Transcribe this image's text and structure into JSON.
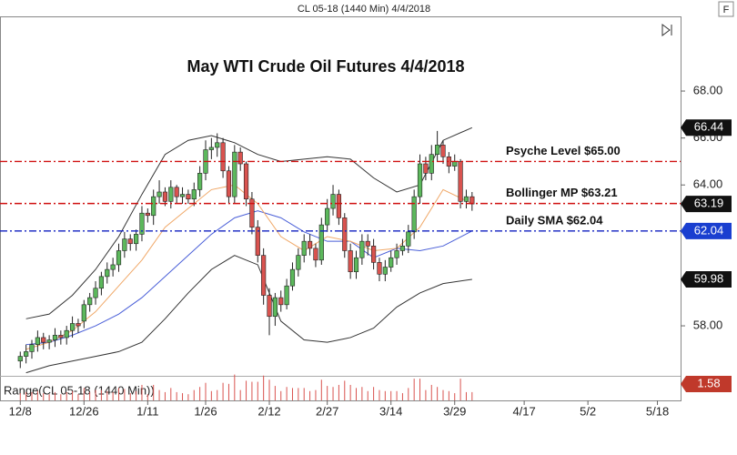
{
  "header": "CL 05-18 (1440 Min)  4/4/2018",
  "f_button": "F",
  "chart_data": {
    "type": "candlestick",
    "title": "May WTI Crude Oil Futures 4/4/2018",
    "ylim": [
      55.87,
      71.18
    ],
    "yticks": [
      {
        "value": 58,
        "label": "58.00"
      },
      {
        "value": 60,
        "label": "60.00"
      },
      {
        "value": 62,
        "label": "62.00"
      },
      {
        "value": 64,
        "label": "64.00"
      },
      {
        "value": 66,
        "label": "66.00"
      },
      {
        "value": 68,
        "label": "68.00"
      }
    ],
    "xlim": [
      -3.5,
      114
    ],
    "xticks": [
      {
        "value": 0,
        "label": "12/8"
      },
      {
        "value": 11,
        "label": "12/26"
      },
      {
        "value": 22,
        "label": "1/11"
      },
      {
        "value": 32,
        "label": "1/26"
      },
      {
        "value": 43,
        "label": "2/12"
      },
      {
        "value": 53,
        "label": "2/27"
      },
      {
        "value": 64,
        "label": "3/14"
      },
      {
        "value": 75,
        "label": "3/29"
      },
      {
        "value": 87,
        "label": "4/17"
      },
      {
        "value": 98,
        "label": "5/2"
      },
      {
        "value": 110,
        "label": "5/18"
      }
    ],
    "up_color": "#5cb85c",
    "down_color": "#d9534f",
    "candles": {
      "open": [
        56.5,
        56.7,
        56.9,
        57.2,
        57.5,
        57.3,
        57.4,
        57.6,
        57.5,
        57.8,
        58.1,
        58.2,
        58.9,
        59.2,
        59.6,
        60.1,
        60.4,
        60.6,
        61.2,
        61.7,
        61.5,
        61.9,
        62.8,
        62.7,
        63.5,
        63.7,
        63.3,
        63.9,
        63.5,
        63.6,
        63.4,
        63.8,
        64.5,
        65.5,
        65.6,
        65.8,
        64.6,
        63.5,
        65.4,
        64.9,
        63.4,
        62.2,
        61.0,
        59.3,
        58.4,
        59.2,
        58.9,
        59.7,
        60.4,
        61.0,
        61.6,
        61.3,
        60.8,
        62.3,
        63.0,
        63.6,
        62.6,
        61.2,
        60.3,
        60.9,
        61.6,
        61.4,
        60.7,
        60.2,
        60.5,
        60.9,
        61.2,
        61.4,
        62.0,
        63.5,
        64.9,
        64.5,
        65.3,
        65.7,
        65.2,
        64.8,
        65.0,
        63.3,
        63.5
      ],
      "high": [
        56.9,
        57.2,
        57.4,
        57.8,
        57.7,
        57.6,
        57.9,
        57.8,
        58.0,
        58.4,
        58.3,
        59.1,
        59.4,
        59.9,
        60.3,
        60.7,
        60.9,
        61.5,
        62.0,
        61.9,
        62.1,
        63.1,
        63.0,
        63.8,
        64.2,
        63.9,
        64.2,
        64.0,
        63.9,
        63.8,
        64.1,
        64.8,
        65.9,
        66.0,
        66.2,
        66.0,
        64.8,
        65.7,
        65.6,
        65.0,
        63.7,
        62.5,
        61.3,
        59.6,
        59.4,
        59.5,
        60.0,
        60.7,
        61.3,
        61.9,
        61.9,
        61.5,
        62.6,
        63.4,
        64.0,
        63.8,
        62.8,
        61.5,
        61.2,
        61.9,
        61.9,
        61.7,
        60.9,
        60.8,
        61.2,
        61.5,
        61.7,
        62.3,
        63.8,
        65.3,
        65.2,
        65.7,
        66.3,
        65.9,
        65.4,
        65.3,
        65.1,
        63.8,
        63.7
      ],
      "low": [
        56.2,
        56.4,
        56.6,
        56.9,
        57.0,
        57.0,
        57.1,
        57.2,
        57.2,
        57.5,
        57.7,
        57.9,
        58.6,
        58.9,
        59.3,
        59.8,
        60.1,
        60.3,
        60.9,
        61.2,
        61.2,
        61.6,
        62.4,
        62.3,
        63.2,
        63.1,
        63.0,
        63.2,
        63.2,
        63.2,
        63.1,
        63.5,
        64.2,
        65.1,
        65.2,
        64.3,
        63.2,
        63.2,
        64.6,
        63.1,
        61.9,
        60.7,
        58.9,
        57.6,
        58.0,
        58.6,
        58.7,
        59.5,
        60.1,
        60.7,
        61.0,
        60.5,
        60.6,
        62.0,
        62.7,
        62.3,
        60.9,
        60.0,
        60.0,
        60.6,
        61.0,
        60.4,
        59.9,
        59.9,
        60.3,
        60.6,
        61.0,
        61.1,
        61.7,
        63.2,
        64.2,
        64.2,
        65.0,
        64.9,
        64.5,
        64.6,
        63.0,
        63.0,
        62.9
      ],
      "close": [
        56.7,
        56.9,
        57.2,
        57.5,
        57.3,
        57.4,
        57.6,
        57.5,
        57.8,
        58.1,
        58.0,
        58.9,
        59.2,
        59.6,
        60.1,
        60.4,
        60.6,
        61.2,
        61.7,
        61.5,
        61.9,
        62.8,
        62.7,
        63.5,
        63.7,
        63.3,
        63.9,
        63.5,
        63.6,
        63.4,
        63.8,
        64.5,
        65.5,
        65.6,
        65.8,
        64.6,
        63.5,
        65.4,
        64.9,
        63.4,
        62.2,
        61.0,
        59.3,
        58.4,
        59.2,
        58.9,
        59.7,
        60.4,
        61.0,
        61.6,
        61.3,
        60.8,
        62.3,
        63.0,
        63.6,
        62.6,
        61.2,
        60.3,
        60.9,
        61.6,
        61.4,
        60.7,
        60.2,
        60.5,
        60.9,
        61.2,
        61.4,
        62.0,
        63.5,
        64.9,
        64.5,
        65.3,
        65.7,
        65.2,
        64.8,
        65.0,
        63.3,
        63.5,
        63.19
      ]
    },
    "overlays": [
      {
        "color": "#333333",
        "x": [
          1,
          5,
          9,
          13,
          17,
          21,
          25,
          29,
          33,
          37,
          41,
          45,
          49,
          53,
          57,
          61,
          65,
          69,
          73,
          78
        ],
        "values": [
          58.3,
          58.5,
          59.3,
          60.4,
          61.8,
          63.6,
          65.3,
          65.9,
          66.1,
          65.8,
          65.3,
          65.0,
          65.1,
          65.2,
          65.1,
          64.3,
          63.7,
          64.0,
          65.9,
          66.44
        ]
      },
      {
        "color": "#333333",
        "x": [
          1,
          5,
          9,
          13,
          17,
          21,
          25,
          29,
          33,
          37,
          41,
          45,
          49,
          53,
          57,
          61,
          65,
          69,
          73,
          78
        ],
        "values": [
          56.0,
          56.3,
          56.5,
          56.7,
          56.9,
          57.3,
          58.3,
          59.4,
          60.4,
          61.0,
          60.6,
          58.2,
          57.4,
          57.3,
          57.5,
          57.9,
          58.8,
          59.4,
          59.8,
          59.98
        ]
      },
      {
        "color": "#4a5fd8",
        "x": [
          1,
          5,
          9,
          13,
          17,
          21,
          25,
          29,
          33,
          37,
          41,
          45,
          49,
          53,
          57,
          61,
          65,
          69,
          73,
          78
        ],
        "values": [
          57.2,
          57.3,
          57.6,
          58.0,
          58.5,
          59.2,
          60.1,
          61.0,
          61.9,
          62.6,
          62.9,
          62.6,
          62.0,
          61.6,
          61.6,
          60.9,
          61.3,
          61.2,
          61.4,
          62.04
        ]
      },
      {
        "color": "#f0a868",
        "x": [
          1,
          5,
          9,
          13,
          17,
          21,
          25,
          29,
          33,
          37,
          41,
          45,
          49,
          53,
          57,
          61,
          65,
          69,
          73,
          78
        ],
        "values": [
          57.0,
          57.3,
          57.8,
          58.6,
          59.7,
          60.8,
          62.2,
          63.0,
          63.8,
          64.0,
          63.2,
          61.8,
          61.2,
          61.8,
          61.6,
          61.2,
          61.3,
          62.2,
          63.8,
          63.21
        ]
      }
    ],
    "levels": [
      {
        "label": "Psyche Level $65.00",
        "value": 65.0,
        "color": "#d01010"
      },
      {
        "label": "Bollinger MP $63.21",
        "value": 63.21,
        "color": "#d01010"
      },
      {
        "label": "Daily SMA $62.04",
        "value": 62.04,
        "color": "#1020c0"
      }
    ],
    "badges": [
      {
        "value": 66.44,
        "color": "#111111"
      },
      {
        "value": 63.19,
        "color": "#111111"
      },
      {
        "value": 62.04,
        "color": "#1a3fd0"
      },
      {
        "value": 59.98,
        "color": "#111111"
      }
    ],
    "range_label": "Range(CL 05-18 (1440 Min))",
    "range_ylim": [
      0,
      2.2
    ],
    "range_badge": {
      "value": 1.58,
      "color": "#c0392b"
    }
  }
}
